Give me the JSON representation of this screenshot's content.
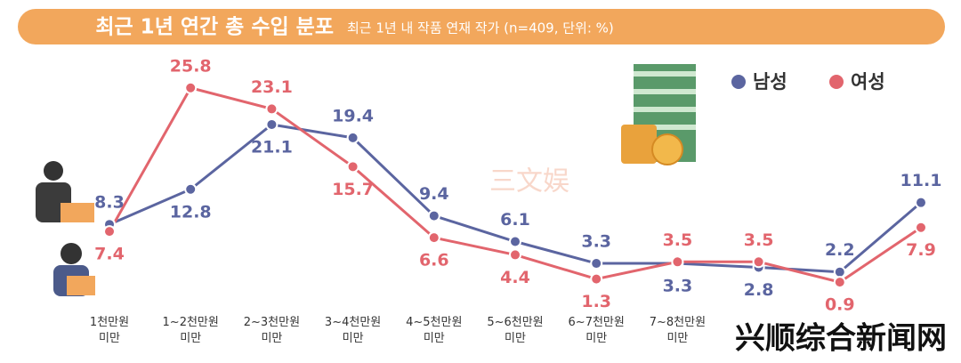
{
  "chart_data": {
    "type": "line",
    "title": "최근 1년 연간 총 수입 분포",
    "subtitle": "최근 1년 내 작품 연재 작가 (n=409, 단위: %)",
    "categories": [
      "1천만원 미만",
      "1~2천만원 미만",
      "2~3천만원 미만",
      "3~4천만원 미만",
      "4~5천만원 미만",
      "5~6천만원 미만",
      "6~7천만원 미만",
      "7~8천만원 미만",
      null,
      null,
      null
    ],
    "series": [
      {
        "name": "남성",
        "color": "#5b65a0",
        "values": [
          8.3,
          12.8,
          21.1,
          19.4,
          9.4,
          6.1,
          3.3,
          3.3,
          2.8,
          2.2,
          11.1
        ]
      },
      {
        "name": "여성",
        "color": "#e2656d",
        "values": [
          7.4,
          25.8,
          23.1,
          15.7,
          6.6,
          4.4,
          1.3,
          3.5,
          3.5,
          0.9,
          7.9
        ]
      }
    ],
    "ylim": [
      0,
      26
    ],
    "watermarks": [
      "三文娱",
      "兴顺综合新闻网"
    ]
  }
}
